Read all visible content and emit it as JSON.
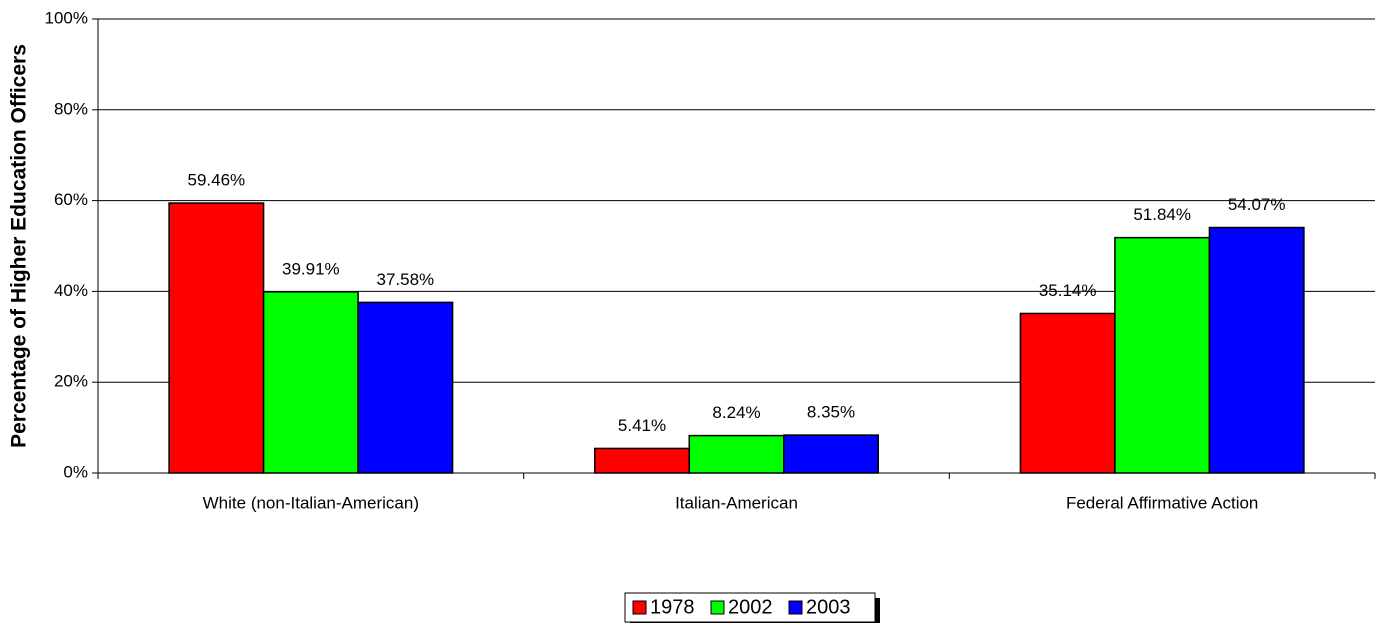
{
  "chart_data": {
    "type": "bar",
    "ylabel": "Percentage of Higher Education Officers",
    "categories": [
      "White (non-Italian-American)",
      "Italian-American",
      "Federal Affirmative Action"
    ],
    "series": [
      {
        "name": "1978",
        "color": "#ff0000",
        "values": [
          59.46,
          5.41,
          35.14
        ],
        "value_labels": [
          "59.46%",
          "5.41%",
          "35.14%"
        ]
      },
      {
        "name": "2002",
        "color": "#00ff00",
        "values": [
          39.91,
          8.24,
          51.84
        ],
        "value_labels": [
          "39.91%",
          "8.24%",
          "51.84%"
        ]
      },
      {
        "name": "2003",
        "color": "#0000ff",
        "values": [
          37.58,
          8.35,
          54.07
        ],
        "value_labels": [
          "37.58%",
          "8.35%",
          "54.07%"
        ]
      }
    ],
    "ylim": [
      0,
      100
    ],
    "yticks": [
      {
        "value": 0,
        "label": "0%"
      },
      {
        "value": 20,
        "label": "20%"
      },
      {
        "value": 40,
        "label": "40%"
      },
      {
        "value": 60,
        "label": "60%"
      },
      {
        "value": 80,
        "label": "80%"
      },
      {
        "value": 100,
        "label": "100%"
      }
    ],
    "grid": true,
    "legend": "bottom"
  }
}
